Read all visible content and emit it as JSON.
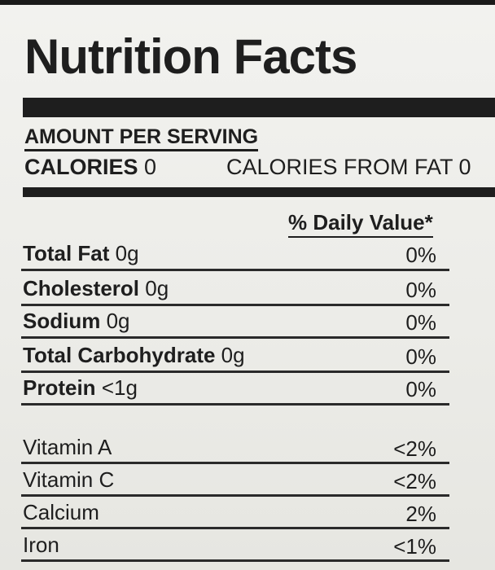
{
  "title": "Nutrition Facts",
  "amount_per_serving": "AMOUNT PER SERVING",
  "calories": {
    "label": "CALORIES",
    "value": "0"
  },
  "calories_from_fat": "CALORIES FROM FAT 0",
  "daily_value_header": "% Daily Value*",
  "nutrients": [
    {
      "name": "Total Fat",
      "amount": "0g",
      "dv": "0%"
    },
    {
      "name": "Cholesterol",
      "amount": "0g",
      "dv": "0%"
    },
    {
      "name": "Sodium",
      "amount": "0g",
      "dv": "0%"
    },
    {
      "name": "Total Carbohydrate",
      "amount": "0g",
      "dv": "0%"
    },
    {
      "name": "Protein",
      "amount": "<1g",
      "dv": "0%"
    }
  ],
  "vitamins": [
    {
      "name": "Vitamin A",
      "dv": "<2%"
    },
    {
      "name": "Vitamin C",
      "dv": "<2%"
    },
    {
      "name": "Calcium",
      "dv": "2%"
    },
    {
      "name": "Iron",
      "dv": "<1%"
    }
  ]
}
